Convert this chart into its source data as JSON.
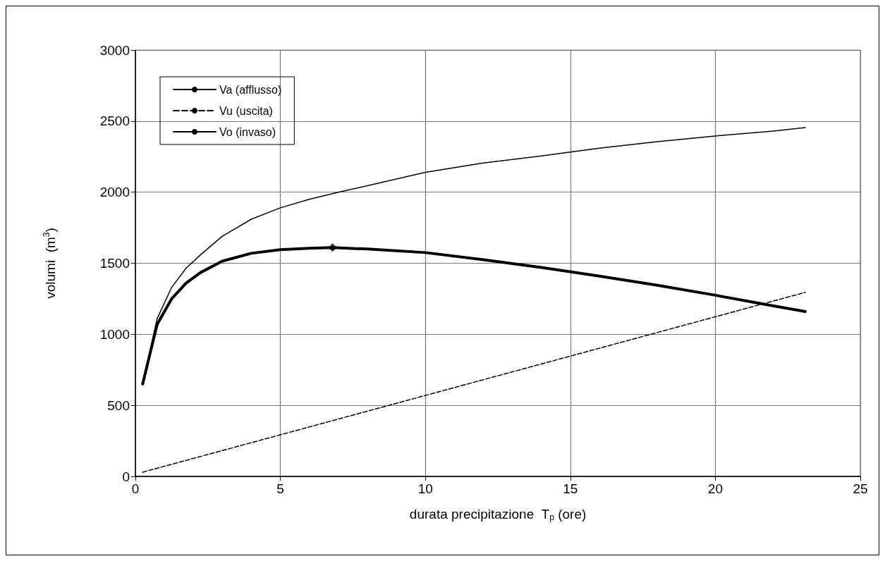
{
  "chart_data": {
    "type": "line",
    "xlabel": "durata precipitazione  T$_{p}$ (ore)",
    "ylabel": "volumi  (m$^{3}$)",
    "xlim": [
      0,
      25
    ],
    "xticks": [
      0,
      5,
      10,
      15,
      20,
      25
    ],
    "ylim": [
      0,
      3000
    ],
    "yticks": [
      0,
      500,
      1000,
      1500,
      2000,
      2500,
      3000
    ],
    "grid": true,
    "legend": "top left",
    "marker": "none",
    "series": [
      {
        "name": "Va (afflusso)",
        "color": "#000000",
        "line_style": "solid",
        "x": [
          0.25,
          0.75,
          1.25,
          1.75,
          2.25,
          3,
          4,
          5,
          6,
          7,
          8,
          10,
          12,
          14,
          16,
          18,
          20,
          22,
          23.1
        ],
        "values": [
          650,
          1110,
          1330,
          1465,
          1560,
          1690,
          1810,
          1890,
          1950,
          2000,
          2045,
          2140,
          2205,
          2255,
          2310,
          2355,
          2395,
          2430,
          2455
        ]
      },
      {
        "name": "Vu (uscita)",
        "color": "#000000",
        "line_style": "dashed",
        "x": [
          0.25,
          23.1
        ],
        "values": [
          30,
          1295
        ]
      },
      {
        "name": "Vo (invaso)",
        "color": "#000000",
        "line_style": "solid",
        "x": [
          0.25,
          0.75,
          1.25,
          1.75,
          2.25,
          3,
          4,
          5,
          6,
          6.8,
          8,
          10,
          12,
          14,
          16,
          18,
          20,
          22,
          23.1
        ],
        "values": [
          650,
          1070,
          1250,
          1360,
          1435,
          1515,
          1570,
          1595,
          1605,
          1610,
          1600,
          1575,
          1525,
          1470,
          1410,
          1345,
          1275,
          1200,
          1160
        ]
      },
      {
        "type": "scatter",
        "marker": "diamond",
        "color": "#000000",
        "x": [
          6.8
        ],
        "values": [
          1610
        ]
      }
    ]
  }
}
